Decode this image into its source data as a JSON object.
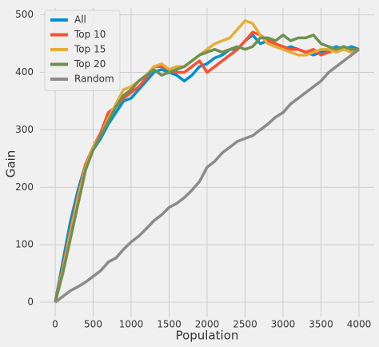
{
  "chart_data": {
    "type": "line",
    "xlabel": "Population",
    "ylabel": "Gain",
    "x": [
      0,
      100,
      200,
      300,
      400,
      500,
      600,
      700,
      800,
      900,
      1000,
      1100,
      1200,
      1300,
      1400,
      1500,
      1600,
      1700,
      1800,
      1900,
      2000,
      2100,
      2200,
      2300,
      2400,
      2500,
      2600,
      2700,
      2800,
      2900,
      3000,
      3100,
      3200,
      3300,
      3400,
      3500,
      3600,
      3700,
      3800,
      3900,
      4000
    ],
    "series": [
      {
        "name": "All",
        "color": "#008fd5",
        "values": [
          0,
          70,
          140,
          195,
          240,
          265,
          285,
          310,
          330,
          350,
          355,
          370,
          385,
          400,
          405,
          400,
          395,
          385,
          395,
          410,
          415,
          425,
          430,
          440,
          440,
          455,
          465,
          450,
          455,
          445,
          440,
          445,
          440,
          435,
          430,
          435,
          440,
          445,
          440,
          445,
          440
        ]
      },
      {
        "name": "Top 10",
        "color": "#fc4f30",
        "values": [
          0,
          60,
          125,
          185,
          240,
          270,
          295,
          330,
          340,
          355,
          365,
          375,
          390,
          410,
          410,
          405,
          400,
          400,
          410,
          420,
          400,
          410,
          420,
          430,
          440,
          455,
          470,
          465,
          455,
          450,
          445,
          440,
          440,
          435,
          440,
          430,
          435,
          440,
          445,
          435,
          440
        ]
      },
      {
        "name": "Top 15",
        "color": "#e5ae38",
        "values": [
          0,
          55,
          120,
          180,
          235,
          270,
          290,
          320,
          345,
          370,
          375,
          385,
          395,
          410,
          415,
          405,
          410,
          410,
          420,
          430,
          440,
          450,
          455,
          460,
          475,
          490,
          485,
          465,
          450,
          445,
          440,
          435,
          430,
          430,
          435,
          440,
          440,
          435,
          440,
          435,
          440
        ]
      },
      {
        "name": "Top 20",
        "color": "#6d904f",
        "values": [
          0,
          50,
          110,
          170,
          230,
          265,
          290,
          315,
          340,
          360,
          370,
          385,
          395,
          405,
          395,
          400,
          405,
          410,
          420,
          430,
          435,
          440,
          435,
          440,
          445,
          440,
          445,
          460,
          460,
          455,
          465,
          455,
          460,
          460,
          465,
          450,
          445,
          440,
          445,
          440,
          440
        ]
      },
      {
        "name": "Random",
        "color": "#8b8b8b",
        "values": [
          0,
          10,
          20,
          27,
          35,
          45,
          55,
          70,
          77,
          92,
          105,
          115,
          128,
          142,
          152,
          165,
          172,
          182,
          195,
          210,
          235,
          245,
          260,
          270,
          280,
          285,
          290,
          300,
          310,
          322,
          330,
          345,
          355,
          365,
          375,
          385,
          400,
          410,
          420,
          430,
          440
        ]
      }
    ],
    "xlim": [
      -200,
      4200
    ],
    "xticks": [
      0,
      500,
      1000,
      1500,
      2000,
      2500,
      3000,
      3500,
      4000
    ],
    "ylim": [
      -25,
      512
    ],
    "yticks": [
      0,
      100,
      200,
      300,
      400,
      500
    ],
    "grid": true,
    "legend": "upper left"
  }
}
